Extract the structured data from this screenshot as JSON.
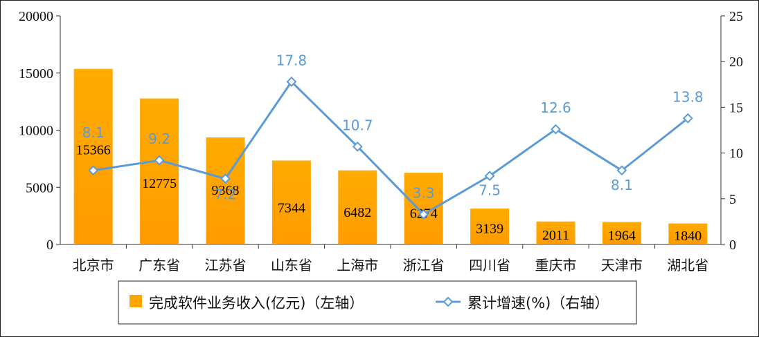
{
  "chart_data": {
    "type": "bar",
    "categories": [
      "北京市",
      "广东省",
      "江苏省",
      "山东省",
      "上海市",
      "浙江省",
      "四川省",
      "重庆市",
      "天津市",
      "湖北省"
    ],
    "series": [
      {
        "name": "完成软件业务收入(亿元)（左轴）",
        "type": "bar",
        "axis": "left",
        "color": "#ffa500",
        "values": [
          15366,
          12775,
          9368,
          7344,
          6482,
          6274,
          3139,
          2011,
          1964,
          1840
        ]
      },
      {
        "name": "累计增速(%)（右轴）",
        "type": "line",
        "axis": "right",
        "color": "#5b9bd5",
        "values": [
          8.1,
          9.2,
          7.2,
          17.8,
          10.7,
          3.3,
          7.5,
          12.6,
          8.1,
          13.8
        ]
      }
    ],
    "left_axis": {
      "ylim": [
        0,
        20000
      ],
      "ticks": [
        0,
        5000,
        10000,
        15000,
        20000
      ]
    },
    "right_axis": {
      "ylim": [
        0,
        25
      ],
      "ticks": [
        0,
        5,
        10,
        15,
        20,
        25
      ]
    },
    "grid": false,
    "legend_position": "bottom"
  }
}
